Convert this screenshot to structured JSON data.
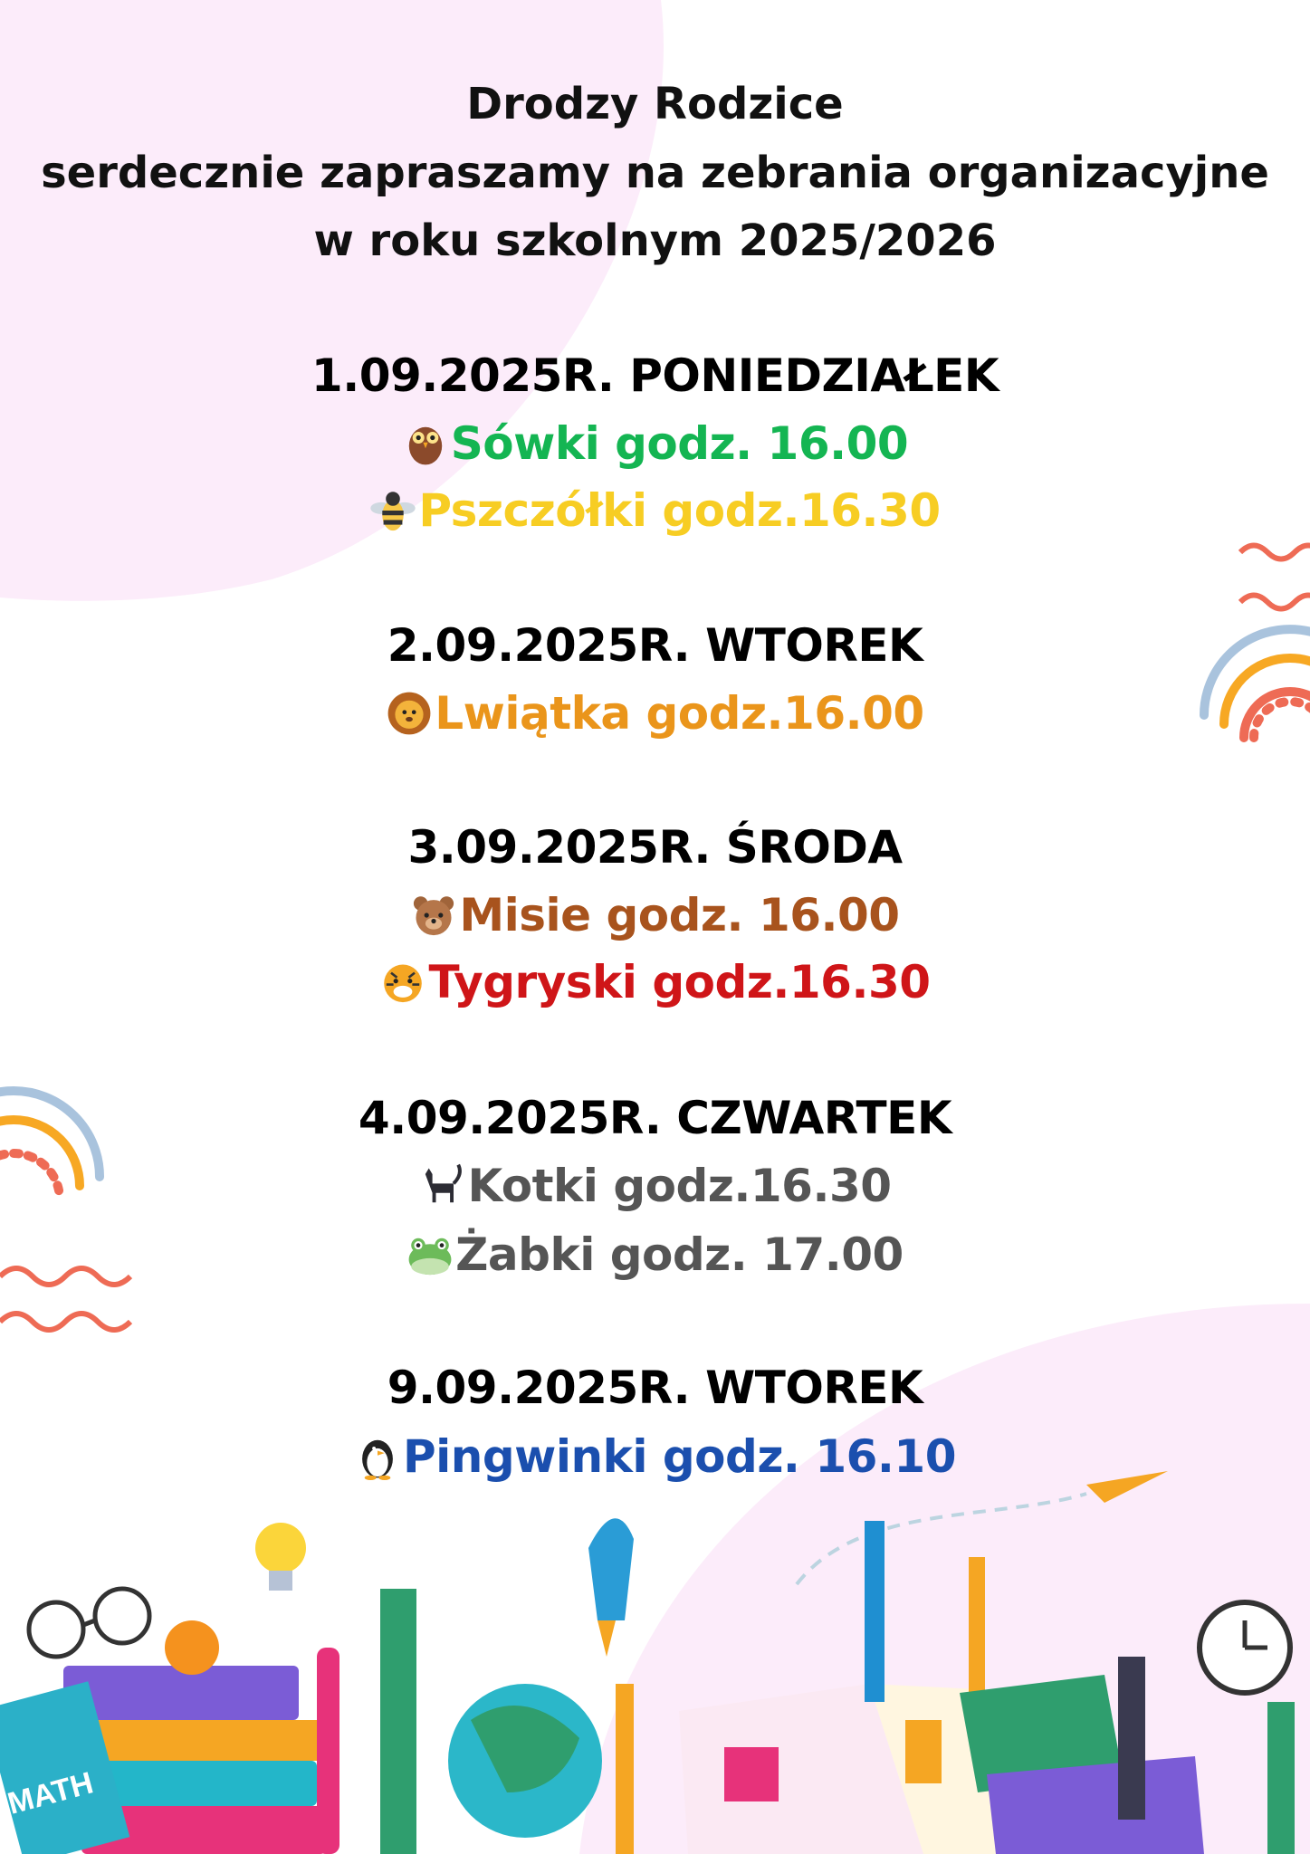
{
  "header": {
    "line1": "Drodzy Rodzice",
    "line2": "serdecznie zapraszamy na zebrania organizacyjne",
    "line3": "w roku szkolnym 2025/2026"
  },
  "meetings": [
    {
      "date": "1.09.2025R. PONIEDZIAŁEK",
      "groups": [
        {
          "label": "Sówki godz. 16.00",
          "icon": "owl-icon",
          "color": "#14b552"
        },
        {
          "label": "Pszczółki godz.16.30",
          "icon": "bee-icon",
          "color": "#f7cd23"
        }
      ]
    },
    {
      "date": "2.09.2025R. WTOREK",
      "groups": [
        {
          "label": "Lwiątka godz.16.00",
          "icon": "lion-icon",
          "color": "#ea951b"
        }
      ]
    },
    {
      "date": "3.09.2025R. ŚRODA",
      "groups": [
        {
          "label": "Misie godz. 16.00",
          "icon": "bear-icon",
          "color": "#a8531d"
        },
        {
          "label": "Tygryski godz.16.30",
          "icon": "tiger-icon",
          "color": "#cf1518"
        }
      ]
    },
    {
      "date": "4.09.2025R. CZWARTEK",
      "groups": [
        {
          "label": "Kotki godz.16.30",
          "icon": "cat-icon",
          "color": "#555555"
        },
        {
          "label": "Żabki godz. 17.00",
          "icon": "frog-icon",
          "color": "#555555"
        }
      ]
    },
    {
      "date": "9.09.2025R. WTOREK",
      "groups": [
        {
          "label": "Pingwinki godz. 16.10",
          "icon": "penguin-icon",
          "color": "#1b4fae"
        }
      ]
    }
  ],
  "decor_text": {
    "book": "MATH"
  }
}
